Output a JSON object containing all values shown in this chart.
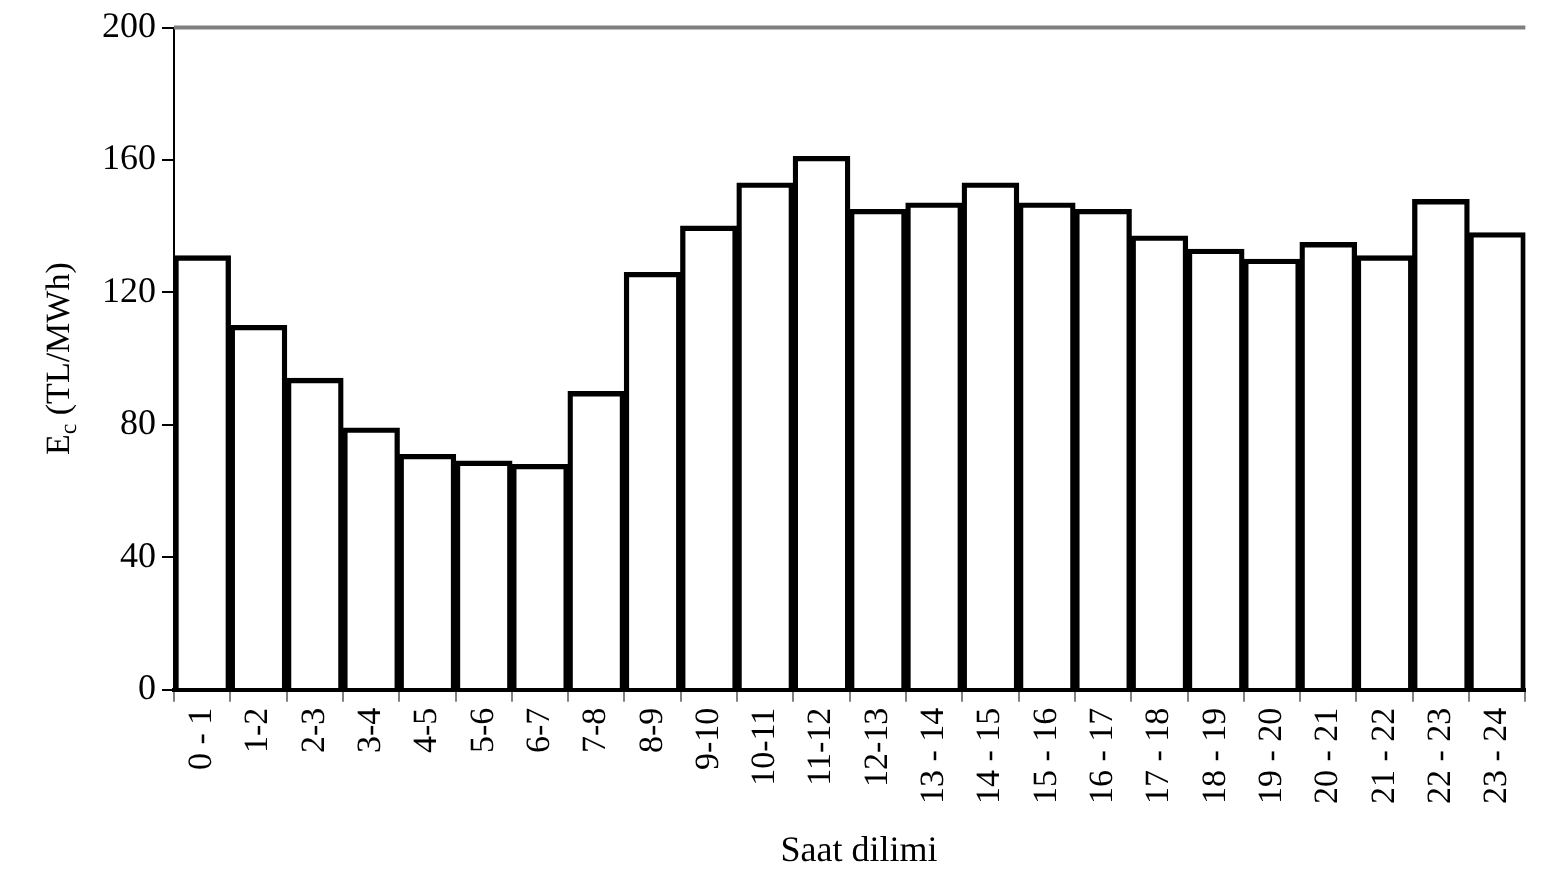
{
  "chart_data": {
    "type": "bar",
    "xlabel": "Saat dilimi",
    "ylabel": "E$_{c}$ (TL/MWh)",
    "categories": [
      "0 - 1",
      "1-2",
      "2-3",
      "3-4",
      "4-5",
      "5-6",
      "6-7",
      "7-8",
      "8-9",
      "9-10",
      "10-11",
      "11-12",
      "12-13",
      "13 - 14",
      "14 - 15",
      "15 - 16",
      "16 - 17",
      "17 - 18",
      "18 - 19",
      "19 - 20",
      "20 - 21",
      "21 - 22",
      "22 - 23",
      "23 - 24"
    ],
    "values": [
      131,
      110,
      94,
      79,
      71,
      69,
      68,
      90,
      126,
      140,
      153,
      161,
      145,
      147,
      153,
      147,
      145,
      137,
      133,
      130,
      135,
      131,
      148,
      138
    ],
    "color": "#000000",
    "ylim": [
      0,
      200
    ],
    "yticks": [
      0,
      40,
      80,
      120,
      160,
      200
    ]
  }
}
